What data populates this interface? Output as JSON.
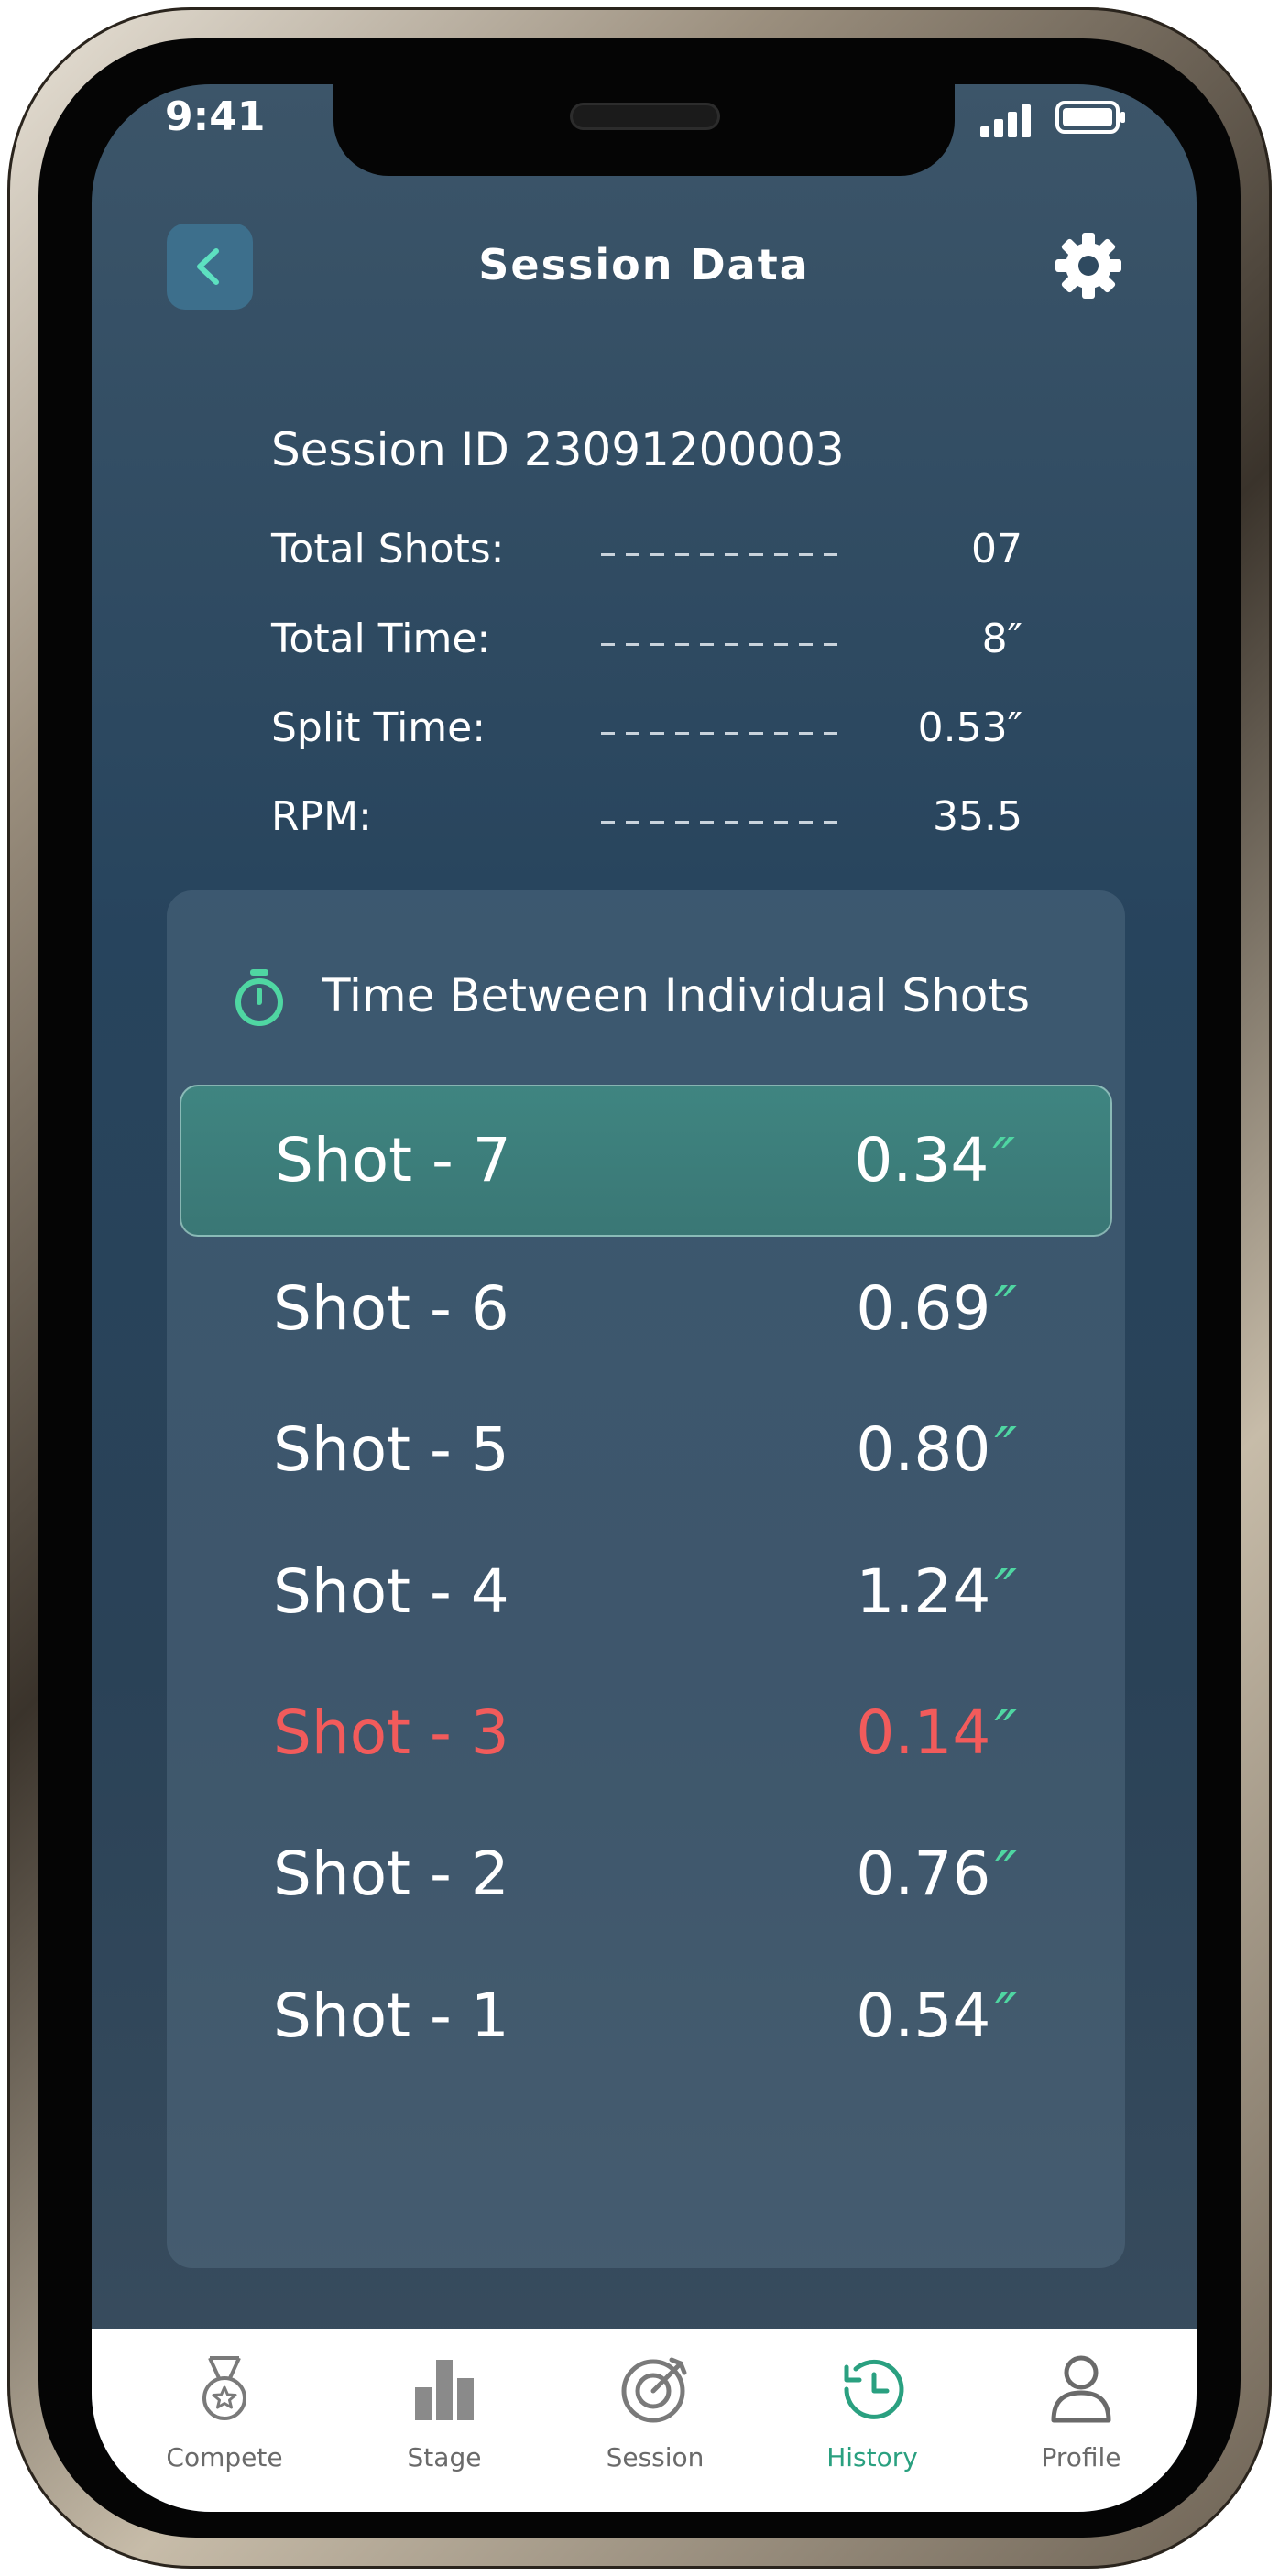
{
  "status_bar": {
    "time": "9:41"
  },
  "header": {
    "title": "Session Data",
    "back_icon": "chevron-left-icon",
    "settings_icon": "gear-icon"
  },
  "summary": {
    "session_id": "Session ID 23091200003",
    "stats": [
      {
        "label": "Total Shots:",
        "value": "07"
      },
      {
        "label": "Total Time:",
        "value": "8″"
      },
      {
        "label": "Split Time:",
        "value": "0.53″"
      },
      {
        "label": "RPM:",
        "value": "35.5"
      }
    ]
  },
  "shots_card": {
    "title": "Time Between Individual Shots",
    "icon": "stopwatch-icon",
    "unit": "″",
    "shots": [
      {
        "label": "Shot - 7",
        "value": "0.34",
        "state": "highlighted"
      },
      {
        "label": "Shot - 6",
        "value": "0.69",
        "state": "normal"
      },
      {
        "label": "Shot - 5",
        "value": "0.80",
        "state": "normal"
      },
      {
        "label": "Shot - 4",
        "value": "1.24",
        "state": "normal"
      },
      {
        "label": "Shot - 3",
        "value": "0.14",
        "state": "warning"
      },
      {
        "label": "Shot - 2",
        "value": "0.76",
        "state": "normal"
      },
      {
        "label": "Shot - 1",
        "value": "0.54",
        "state": "normal"
      }
    ]
  },
  "tab_bar": {
    "active": "History",
    "items": [
      {
        "label": "Compete",
        "icon": "medal-icon"
      },
      {
        "label": "Stage",
        "icon": "bar-chart-icon"
      },
      {
        "label": "Session",
        "icon": "target-icon"
      },
      {
        "label": "History",
        "icon": "history-icon"
      },
      {
        "label": "Profile",
        "icon": "user-icon"
      }
    ]
  },
  "colors": {
    "accent": "#4fd6a2",
    "highlight_row": "#3f8581",
    "warning": "#f25b5b",
    "active_tab": "#2aa080"
  }
}
